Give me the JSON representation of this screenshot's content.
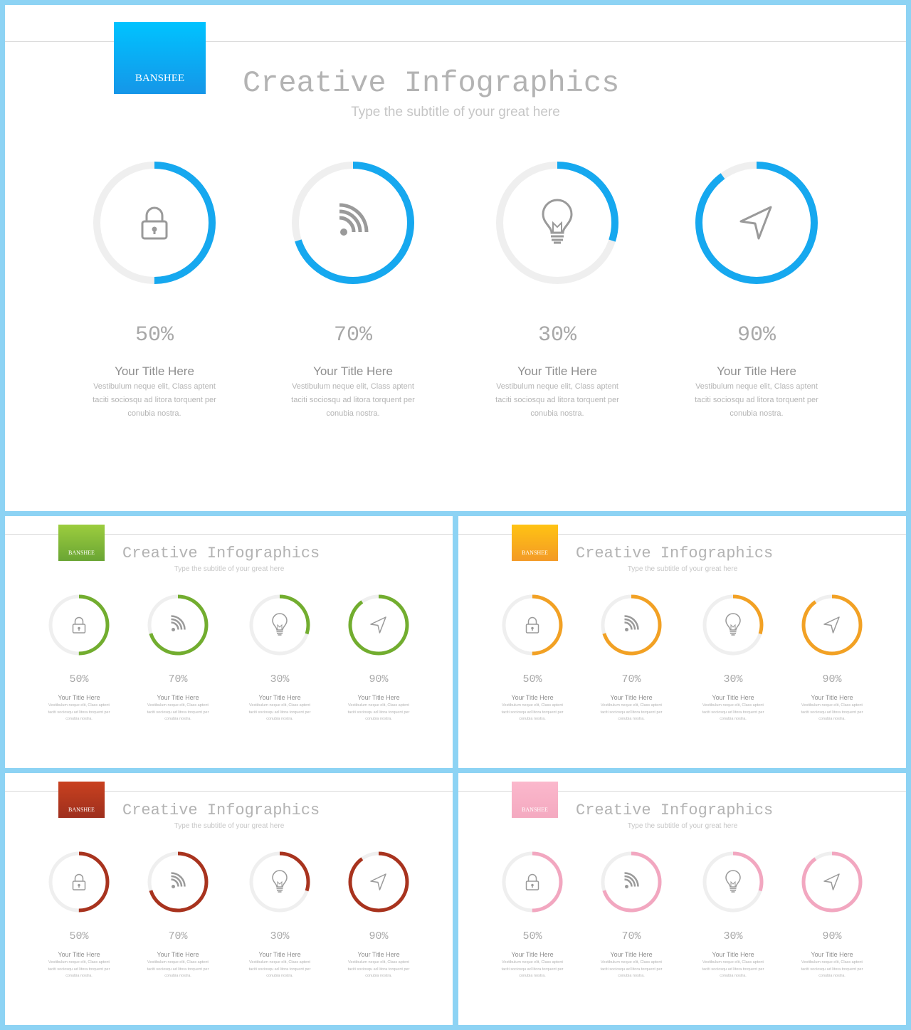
{
  "slides": [
    {
      "brand": "BANSHEE",
      "title": "Creative Infographics",
      "subtitle": "Type the subtitle of your great here",
      "colors": {
        "accent": "#16a8ef",
        "brand_top": "#00c3ff",
        "brand_bottom": "#1596e8"
      },
      "items": [
        {
          "icon": "lock-icon",
          "value": 50,
          "label": "50%",
          "title": "Your Title Here",
          "desc_line1": "Vestibulum neque  elit, Class aptent",
          "desc_line2": "taciti sociosqu ad litora torquent per",
          "desc_line3": "conubia nostra."
        },
        {
          "icon": "rss-icon",
          "value": 70,
          "label": "70%",
          "title": "Your Title Here",
          "desc_line1": "Vestibulum neque  elit, Class aptent",
          "desc_line2": "taciti sociosqu ad litora torquent per",
          "desc_line3": "conubia nostra."
        },
        {
          "icon": "lightbulb-icon",
          "value": 30,
          "label": "30%",
          "title": "Your Title Here",
          "desc_line1": "Vestibulum neque  elit, Class aptent",
          "desc_line2": "taciti sociosqu ad litora torquent per",
          "desc_line3": "conubia nostra."
        },
        {
          "icon": "navigation-arrow-icon",
          "value": 90,
          "label": "90%",
          "title": "Your Title Here",
          "desc_line1": "Vestibulum neque  elit, Class aptent",
          "desc_line2": "taciti sociosqu ad litora torquent per",
          "desc_line3": "conubia nostra."
        }
      ]
    },
    {
      "brand": "BANSHEE",
      "title": "Creative Infographics",
      "subtitle": "Type the subtitle of your great here",
      "colors": {
        "accent": "#72ad2f",
        "brand_top": "#9ccd3e",
        "brand_bottom": "#6aa534"
      },
      "items": [
        {
          "icon": "lock-icon",
          "value": 50,
          "label": "50%",
          "title": "Your Title Here",
          "desc_line1": "Vestibulum neque  elit, Class aptent",
          "desc_line2": "taciti sociosqu ad litora torquent per",
          "desc_line3": "conubia nostra."
        },
        {
          "icon": "rss-icon",
          "value": 70,
          "label": "70%",
          "title": "Your Title Here",
          "desc_line1": "Vestibulum neque  elit, Class aptent",
          "desc_line2": "taciti sociosqu ad litora torquent per",
          "desc_line3": "conubia nostra."
        },
        {
          "icon": "lightbulb-icon",
          "value": 30,
          "label": "30%",
          "title": "Your Title Here",
          "desc_line1": "Vestibulum neque  elit, Class aptent",
          "desc_line2": "taciti sociosqu ad litora torquent per",
          "desc_line3": "conubia nostra."
        },
        {
          "icon": "navigation-arrow-icon",
          "value": 90,
          "label": "90%",
          "title": "Your Title Here",
          "desc_line1": "Vestibulum neque  elit, Class aptent",
          "desc_line2": "taciti sociosqu ad litora torquent per",
          "desc_line3": "conubia nostra."
        }
      ]
    },
    {
      "brand": "BANSHEE",
      "title": "Creative Infographics",
      "subtitle": "Type the subtitle of your great here",
      "colors": {
        "accent": "#f2a124",
        "brand_top": "#ffc313",
        "brand_bottom": "#f39a26"
      },
      "items": [
        {
          "icon": "lock-icon",
          "value": 50,
          "label": "50%",
          "title": "Your Title Here",
          "desc_line1": "Vestibulum neque  elit, Class aptent",
          "desc_line2": "taciti sociosqu ad litora torquent per",
          "desc_line3": "conubia nostra."
        },
        {
          "icon": "rss-icon",
          "value": 70,
          "label": "70%",
          "title": "Your Title Here",
          "desc_line1": "Vestibulum neque  elit, Class aptent",
          "desc_line2": "taciti sociosqu ad litora torquent per",
          "desc_line3": "conubia nostra."
        },
        {
          "icon": "lightbulb-icon",
          "value": 30,
          "label": "30%",
          "title": "Your Title Here",
          "desc_line1": "Vestibulum neque  elit, Class aptent",
          "desc_line2": "taciti sociosqu ad litora torquent per",
          "desc_line3": "conubia nostra."
        },
        {
          "icon": "navigation-arrow-icon",
          "value": 90,
          "label": "90%",
          "title": "Your Title Here",
          "desc_line1": "Vestibulum neque  elit, Class aptent",
          "desc_line2": "taciti sociosqu ad litora torquent per",
          "desc_line3": "conubia nostra."
        }
      ]
    },
    {
      "brand": "BANSHEE",
      "title": "Creative Infographics",
      "subtitle": "Type the subtitle of your great here",
      "colors": {
        "accent": "#a8331e",
        "brand_top": "#c9411f",
        "brand_bottom": "#9e2f1e"
      },
      "items": [
        {
          "icon": "lock-icon",
          "value": 50,
          "label": "50%",
          "title": "Your Title Here",
          "desc_line1": "Vestibulum neque  elit, Class aptent",
          "desc_line2": "taciti sociosqu ad litora torquent per",
          "desc_line3": "conubia nostra."
        },
        {
          "icon": "rss-icon",
          "value": 70,
          "label": "70%",
          "title": "Your Title Here",
          "desc_line1": "Vestibulum neque  elit, Class aptent",
          "desc_line2": "taciti sociosqu ad litora torquent per",
          "desc_line3": "conubia nostra."
        },
        {
          "icon": "lightbulb-icon",
          "value": 30,
          "label": "30%",
          "title": "Your Title Here",
          "desc_line1": "Vestibulum neque  elit, Class aptent",
          "desc_line2": "taciti sociosqu ad litora torquent per",
          "desc_line3": "conubia nostra."
        },
        {
          "icon": "navigation-arrow-icon",
          "value": 90,
          "label": "90%",
          "title": "Your Title Here",
          "desc_line1": "Vestibulum neque  elit, Class aptent",
          "desc_line2": "taciti sociosqu ad litora torquent per",
          "desc_line3": "conubia nostra."
        }
      ]
    },
    {
      "brand": "BANSHEE",
      "title": "Creative Infographics",
      "subtitle": "Type the subtitle of your great here",
      "colors": {
        "accent": "#f2a7c0",
        "brand_top": "#fbb8cc",
        "brand_bottom": "#f4a9c0"
      },
      "items": [
        {
          "icon": "lock-icon",
          "value": 50,
          "label": "50%",
          "title": "Your Title Here",
          "desc_line1": "Vestibulum neque  elit, Class aptent",
          "desc_line2": "taciti sociosqu ad litora torquent per",
          "desc_line3": "conubia nostra."
        },
        {
          "icon": "rss-icon",
          "value": 70,
          "label": "70%",
          "title": "Your Title Here",
          "desc_line1": "Vestibulum neque  elit, Class aptent",
          "desc_line2": "taciti sociosqu ad litora torquent per",
          "desc_line3": "conubia nostra."
        },
        {
          "icon": "lightbulb-icon",
          "value": 30,
          "label": "30%",
          "title": "Your Title Here",
          "desc_line1": "Vestibulum neque  elit, Class aptent",
          "desc_line2": "taciti sociosqu ad litora torquent per",
          "desc_line3": "conubia nostra."
        },
        {
          "icon": "navigation-arrow-icon",
          "value": 90,
          "label": "90%",
          "title": "Your Title Here",
          "desc_line1": "Vestibulum neque  elit, Class aptent",
          "desc_line2": "taciti sociosqu ad litora torquent per",
          "desc_line3": "conubia nostra."
        }
      ]
    }
  ]
}
